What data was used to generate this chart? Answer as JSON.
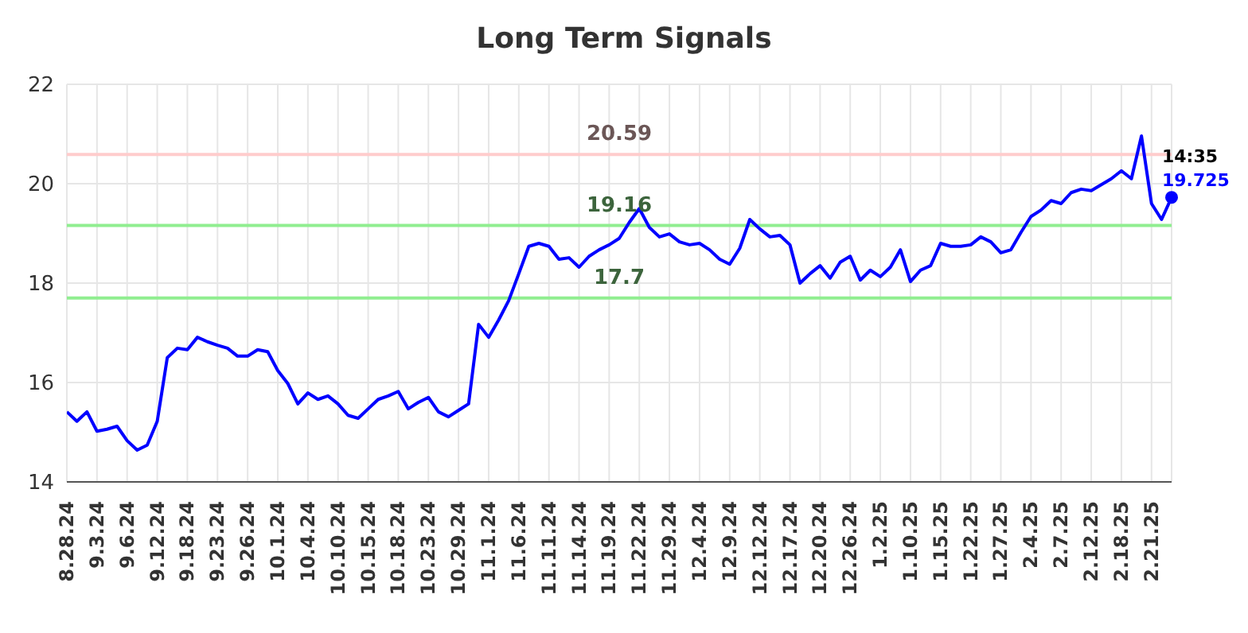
{
  "chart_data": {
    "type": "line",
    "title": "Long Term Signals",
    "categories": [
      "8.28.24",
      null,
      null,
      "9.3.24",
      null,
      null,
      "9.6.24",
      null,
      null,
      "9.12.24",
      null,
      null,
      "9.18.24",
      null,
      null,
      "9.23.24",
      null,
      null,
      "9.26.24",
      null,
      null,
      "10.1.24",
      null,
      null,
      "10.4.24",
      null,
      null,
      "10.10.24",
      null,
      null,
      "10.15.24",
      null,
      null,
      "10.18.24",
      null,
      null,
      "10.23.24",
      null,
      null,
      "10.29.24",
      null,
      null,
      "11.1.24",
      null,
      null,
      "11.6.24",
      null,
      null,
      "11.11.24",
      null,
      null,
      "11.14.24",
      null,
      null,
      "11.19.24",
      null,
      null,
      "11.22.24",
      null,
      null,
      "11.29.24",
      null,
      null,
      "12.4.24",
      null,
      null,
      "12.9.24",
      null,
      null,
      "12.12.24",
      null,
      null,
      "12.17.24",
      null,
      null,
      "12.20.24",
      null,
      null,
      "12.26.24",
      null,
      null,
      "1.2.25",
      null,
      null,
      "1.10.25",
      null,
      null,
      "1.15.25",
      null,
      null,
      "1.22.25",
      null,
      null,
      "1.27.25",
      null,
      null,
      "2.4.25",
      null,
      null,
      "2.7.25",
      null,
      null,
      "2.12.25",
      null,
      null,
      "2.18.25",
      null,
      null,
      "2.21.25",
      null,
      null
    ],
    "series": [
      {
        "color": "#0000ff",
        "values": [
          15.41,
          15.22,
          15.41,
          15.02,
          15.06,
          15.12,
          14.83,
          14.64,
          14.74,
          15.22,
          16.5,
          16.69,
          16.66,
          16.91,
          16.82,
          16.75,
          16.69,
          16.53,
          16.53,
          16.66,
          16.62,
          16.24,
          15.98,
          15.57,
          15.79,
          15.66,
          15.73,
          15.57,
          15.34,
          15.28,
          15.47,
          15.66,
          15.73,
          15.82,
          15.47,
          15.6,
          15.7,
          15.41,
          15.31,
          15.44,
          15.57,
          17.17,
          16.91,
          17.26,
          17.65,
          18.19,
          18.74,
          18.8,
          18.74,
          18.48,
          18.51,
          18.32,
          18.54,
          18.67,
          18.77,
          18.9,
          19.22,
          19.5,
          19.12,
          18.93,
          18.99,
          18.83,
          18.77,
          18.8,
          18.67,
          18.48,
          18.38,
          18.7,
          19.28,
          19.09,
          18.93,
          18.96,
          18.77,
          18.0,
          18.19,
          18.35,
          18.1,
          18.42,
          18.54,
          18.06,
          18.26,
          18.13,
          18.32,
          18.67,
          18.03,
          18.26,
          18.35,
          18.8,
          18.74,
          18.74,
          18.77,
          18.93,
          18.83,
          18.61,
          18.67,
          19.02,
          19.34,
          19.47,
          19.66,
          19.6,
          19.82,
          19.89,
          19.86,
          19.98,
          20.1,
          20.26,
          20.1,
          20.96,
          19.6,
          19.28,
          19.725
        ]
      }
    ],
    "ylim": [
      14,
      22
    ],
    "yticks": [
      14,
      16,
      18,
      20,
      22
    ],
    "grid": true,
    "marker": "none",
    "line_style": "solid",
    "ref_lines": [
      {
        "axis": "y",
        "value": 20.59,
        "label": "20.59",
        "color": "#ffcccc"
      },
      {
        "axis": "y",
        "value": 19.16,
        "label": "19.16",
        "color": "#90ee90"
      },
      {
        "axis": "y",
        "value": 17.7,
        "label": "17.7",
        "color": "#90ee90"
      }
    ],
    "annotations": [
      "14:35",
      "19.725"
    ]
  }
}
